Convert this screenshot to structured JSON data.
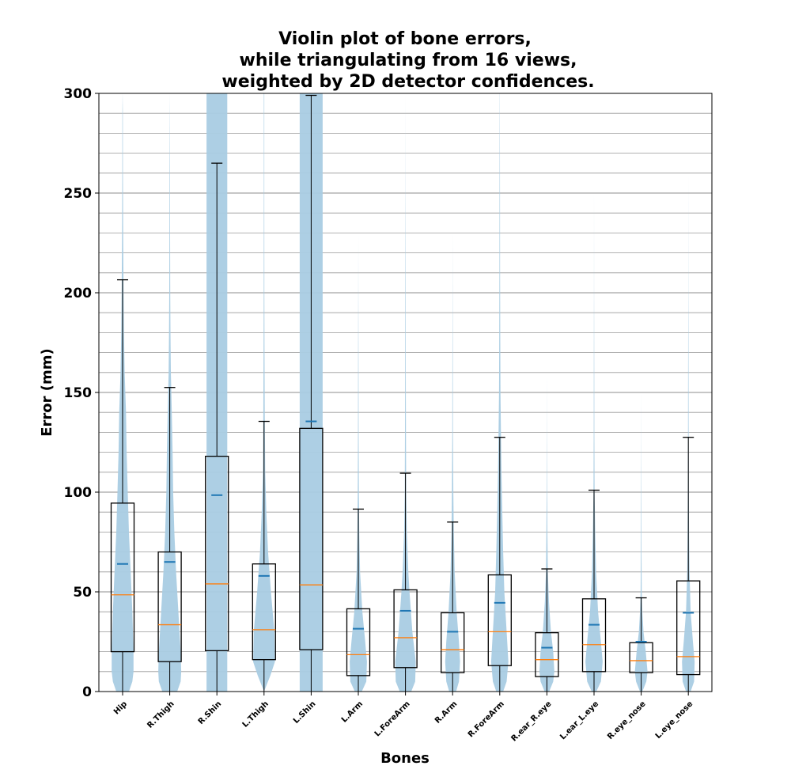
{
  "chart_data": {
    "type": "violin",
    "title_lines": [
      "Violin plot of bone errors,",
      "while triangulating from 16 views,",
      "weighted by 2D detector confidences."
    ],
    "xlabel": "Bones",
    "ylabel": "Error (mm)",
    "ylim": [
      0,
      300
    ],
    "yticks": [
      0,
      50,
      100,
      150,
      200,
      250,
      300
    ],
    "minor_grid_step": 10,
    "grid": true,
    "colors": {
      "violin": "#a9cce3",
      "mean": "#1f77b4",
      "median": "#ff7f0e",
      "box": "#000000",
      "grid": "#808080"
    },
    "categories": [
      "Hip",
      "R.Thigh",
      "R.Shin",
      "L.Thigh",
      "L.Shin",
      "L.Arm",
      "L.ForeArm",
      "R.Arm",
      "R.ForeArm",
      "R.ear_R.eye",
      "L.ear_L.eye",
      "R.eye_nose",
      "L.eye_nose"
    ],
    "boxes": [
      {
        "q1": 20,
        "median": 48.5,
        "q3": 94.5,
        "whisker_low": 0,
        "whisker_high": 206.5,
        "mean": 64
      },
      {
        "q1": 15,
        "median": 33.5,
        "q3": 70,
        "whisker_low": 0,
        "whisker_high": 152.5,
        "mean": 65
      },
      {
        "q1": 20.5,
        "median": 54,
        "q3": 118,
        "whisker_low": 0,
        "whisker_high": 265,
        "mean": 98.5
      },
      {
        "q1": 16,
        "median": 31,
        "q3": 64,
        "whisker_low": 0,
        "whisker_high": 135.5,
        "mean": 58
      },
      {
        "q1": 21,
        "median": 53.5,
        "q3": 132,
        "whisker_low": 0,
        "whisker_high": 299,
        "mean": 135.5
      },
      {
        "q1": 8,
        "median": 18.5,
        "q3": 41.5,
        "whisker_low": 0,
        "whisker_high": 91.5,
        "mean": 31.5
      },
      {
        "q1": 12,
        "median": 27,
        "q3": 51,
        "whisker_low": 0,
        "whisker_high": 109.5,
        "mean": 40.5
      },
      {
        "q1": 9.5,
        "median": 21,
        "q3": 39.5,
        "whisker_low": 0,
        "whisker_high": 85,
        "mean": 30
      },
      {
        "q1": 13,
        "median": 30,
        "q3": 58.5,
        "whisker_low": 0,
        "whisker_high": 127.5,
        "mean": 44.5
      },
      {
        "q1": 7.5,
        "median": 16,
        "q3": 29.5,
        "whisker_low": 0,
        "whisker_high": 61.5,
        "mean": 22
      },
      {
        "q1": 10,
        "median": 23.5,
        "q3": 46.5,
        "whisker_low": 0,
        "whisker_high": 101,
        "mean": 33.5
      },
      {
        "q1": 9.5,
        "median": 15.5,
        "q3": 24.5,
        "whisker_low": 0,
        "whisker_high": 47,
        "mean": 25
      },
      {
        "q1": 8.5,
        "median": 17.5,
        "q3": 55.5,
        "whisker_low": 0,
        "whisker_high": 127.5,
        "mean": 39.5
      }
    ],
    "violins": [
      {
        "profile": [
          [
            0,
            0.55
          ],
          [
            5,
            0.85
          ],
          [
            10,
            0.95
          ],
          [
            20,
            0.95
          ],
          [
            40,
            0.85
          ],
          [
            60,
            0.7
          ],
          [
            80,
            0.55
          ],
          [
            100,
            0.45
          ],
          [
            120,
            0.35
          ],
          [
            140,
            0.3
          ],
          [
            160,
            0.18
          ],
          [
            180,
            0.12
          ],
          [
            200,
            0.08
          ],
          [
            230,
            0.05
          ],
          [
            260,
            0.03
          ],
          [
            290,
            0.02
          ],
          [
            300,
            0.0
          ]
        ]
      },
      {
        "profile": [
          [
            0,
            0.65
          ],
          [
            5,
            0.95
          ],
          [
            10,
            1.0
          ],
          [
            20,
            0.95
          ],
          [
            40,
            0.75
          ],
          [
            60,
            0.55
          ],
          [
            80,
            0.4
          ],
          [
            100,
            0.3
          ],
          [
            120,
            0.25
          ],
          [
            140,
            0.18
          ],
          [
            160,
            0.1
          ],
          [
            180,
            0.06
          ],
          [
            200,
            0.04
          ],
          [
            230,
            0.03
          ],
          [
            260,
            0.02
          ],
          [
            290,
            0.01
          ],
          [
            300,
            0.0
          ]
        ]
      },
      {
        "profile": [
          [
            0,
            0.9
          ],
          [
            300,
            0.9
          ]
        ]
      },
      {
        "profile": [
          [
            0,
            0.0
          ],
          [
            8,
            0.55
          ],
          [
            15,
            0.95
          ],
          [
            30,
            0.9
          ],
          [
            50,
            0.6
          ],
          [
            70,
            0.35
          ],
          [
            90,
            0.2
          ],
          [
            110,
            0.1
          ],
          [
            140,
            0.06
          ],
          [
            170,
            0.04
          ],
          [
            200,
            0.03
          ],
          [
            250,
            0.02
          ],
          [
            300,
            0.02
          ]
        ]
      },
      {
        "profile": [
          [
            0,
            1.0
          ],
          [
            300,
            1.0
          ]
        ]
      },
      {
        "profile": [
          [
            0,
            0.3
          ],
          [
            5,
            0.7
          ],
          [
            15,
            0.75
          ],
          [
            25,
            0.6
          ],
          [
            40,
            0.35
          ],
          [
            60,
            0.15
          ],
          [
            80,
            0.08
          ],
          [
            100,
            0.05
          ],
          [
            130,
            0.03
          ],
          [
            160,
            0.02
          ],
          [
            200,
            0.01
          ],
          [
            230,
            0.0
          ]
        ]
      },
      {
        "profile": [
          [
            0,
            0.5
          ],
          [
            5,
            0.85
          ],
          [
            15,
            0.9
          ],
          [
            30,
            0.6
          ],
          [
            50,
            0.35
          ],
          [
            60,
            0.25
          ],
          [
            80,
            0.12
          ],
          [
            100,
            0.06
          ],
          [
            130,
            0.04
          ],
          [
            160,
            0.03
          ],
          [
            200,
            0.02
          ],
          [
            250,
            0.01
          ],
          [
            300,
            0.0
          ]
        ]
      },
      {
        "profile": [
          [
            0,
            0.3
          ],
          [
            5,
            0.55
          ],
          [
            15,
            0.65
          ],
          [
            25,
            0.55
          ],
          [
            40,
            0.35
          ],
          [
            60,
            0.18
          ],
          [
            80,
            0.1
          ],
          [
            100,
            0.06
          ],
          [
            130,
            0.03
          ],
          [
            160,
            0.02
          ],
          [
            200,
            0.01
          ],
          [
            230,
            0.0
          ]
        ]
      },
      {
        "profile": [
          [
            0,
            0.3
          ],
          [
            5,
            0.6
          ],
          [
            15,
            0.75
          ],
          [
            30,
            0.6
          ],
          [
            50,
            0.4
          ],
          [
            70,
            0.3
          ],
          [
            90,
            0.22
          ],
          [
            110,
            0.15
          ],
          [
            130,
            0.1
          ],
          [
            150,
            0.06
          ],
          [
            180,
            0.04
          ],
          [
            210,
            0.03
          ],
          [
            250,
            0.02
          ],
          [
            300,
            0.01
          ]
        ]
      },
      {
        "profile": [
          [
            0,
            0.2
          ],
          [
            5,
            0.55
          ],
          [
            10,
            0.65
          ],
          [
            20,
            0.55
          ],
          [
            30,
            0.35
          ],
          [
            45,
            0.18
          ],
          [
            60,
            0.08
          ],
          [
            80,
            0.04
          ],
          [
            100,
            0.02
          ],
          [
            130,
            0.01
          ],
          [
            160,
            0.0
          ]
        ]
      },
      {
        "profile": [
          [
            0,
            0.2
          ],
          [
            5,
            0.6
          ],
          [
            15,
            0.75
          ],
          [
            25,
            0.6
          ],
          [
            40,
            0.35
          ],
          [
            60,
            0.18
          ],
          [
            80,
            0.1
          ],
          [
            100,
            0.05
          ],
          [
            130,
            0.03
          ],
          [
            160,
            0.02
          ],
          [
            200,
            0.01
          ],
          [
            250,
            0.0
          ]
        ]
      },
      {
        "profile": [
          [
            0,
            0.1
          ],
          [
            5,
            0.45
          ],
          [
            10,
            0.55
          ],
          [
            20,
            0.4
          ],
          [
            30,
            0.2
          ],
          [
            40,
            0.1
          ],
          [
            50,
            0.05
          ],
          [
            70,
            0.03
          ],
          [
            90,
            0.02
          ],
          [
            120,
            0.01
          ],
          [
            150,
            0.0
          ]
        ]
      },
      {
        "profile": [
          [
            0,
            0.2
          ],
          [
            5,
            0.5
          ],
          [
            15,
            0.55
          ],
          [
            25,
            0.4
          ],
          [
            40,
            0.2
          ],
          [
            60,
            0.1
          ],
          [
            80,
            0.06
          ],
          [
            100,
            0.04
          ],
          [
            130,
            0.03
          ],
          [
            160,
            0.02
          ],
          [
            200,
            0.01
          ],
          [
            260,
            0.0
          ]
        ]
      }
    ]
  }
}
